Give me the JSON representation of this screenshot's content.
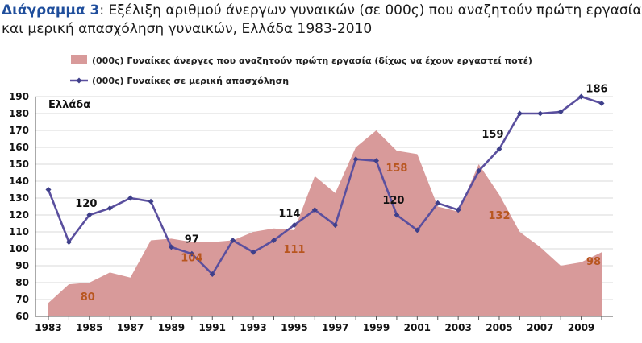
{
  "title": {
    "prefix": "Διάγραμμα 3",
    "line1": ": Εξέλιξη αριθμού άνεργων γυναικών (σε 000ς) που αναζητούν πρώτη εργασία",
    "line2": "και μερική απασχόληση γυναικών, Ελλάδα 1983-2010"
  },
  "colors": {
    "area": "#d89a9a",
    "line": "#5a4f9e",
    "line_marker": "#3e3f8a",
    "area_label": "#b8561f",
    "line_label": "#111111",
    "axis": "#555555"
  },
  "chart_data": {
    "type": "line",
    "annotation": "Ελλάδα",
    "x": [
      1983,
      1984,
      1985,
      1986,
      1987,
      1988,
      1989,
      1990,
      1991,
      1992,
      1993,
      1994,
      1995,
      1996,
      1997,
      1998,
      1999,
      2000,
      2001,
      2002,
      2003,
      2004,
      2005,
      2006,
      2007,
      2008,
      2009,
      2010
    ],
    "x_ticks": [
      1983,
      1985,
      1987,
      1989,
      1991,
      1993,
      1995,
      1997,
      1999,
      2001,
      2003,
      2005,
      2007,
      2009
    ],
    "ylim": [
      60,
      190
    ],
    "y_ticks": [
      60,
      70,
      80,
      90,
      100,
      110,
      120,
      130,
      140,
      150,
      160,
      170,
      180,
      190
    ],
    "grid": true,
    "legend_position": "top",
    "series": [
      {
        "name": "(000ς) Γυναίκες άνεργες που αναζητούν πρώτη εργασία (δίχως να έχουν εργαστεί ποτέ)",
        "kind": "area",
        "values": [
          68,
          79,
          80,
          86,
          83,
          105,
          106,
          104,
          104,
          105,
          110,
          112,
          111,
          143,
          133,
          160,
          170,
          158,
          156,
          125,
          122,
          150,
          132,
          110,
          101,
          90,
          92,
          98
        ]
      },
      {
        "name": "(000ς) Γυναίκες σε μερική απασχόληση",
        "kind": "line",
        "values": [
          135,
          104,
          120,
          124,
          130,
          128,
          101,
          97,
          85,
          105,
          98,
          105,
          114,
          123,
          114,
          153,
          152,
          120,
          111,
          127,
          123,
          146,
          159,
          180,
          180,
          181,
          190,
          186
        ]
      }
    ],
    "data_labels": [
      {
        "series": 1,
        "year": 1985,
        "text": "120"
      },
      {
        "series": 1,
        "year": 1990,
        "text": "97"
      },
      {
        "series": 1,
        "year": 1995,
        "text": "114"
      },
      {
        "series": 1,
        "year": 2000,
        "text": "120"
      },
      {
        "series": 1,
        "year": 2005,
        "text": "159"
      },
      {
        "series": 1,
        "year": 2010,
        "text": "186"
      },
      {
        "series": 0,
        "year": 1985,
        "text": "80"
      },
      {
        "series": 0,
        "year": 1990,
        "text": "104"
      },
      {
        "series": 0,
        "year": 1995,
        "text": "111"
      },
      {
        "series": 0,
        "year": 2000,
        "text": "158"
      },
      {
        "series": 0,
        "year": 2005,
        "text": "132"
      },
      {
        "series": 0,
        "year": 2010,
        "text": "98"
      }
    ]
  }
}
